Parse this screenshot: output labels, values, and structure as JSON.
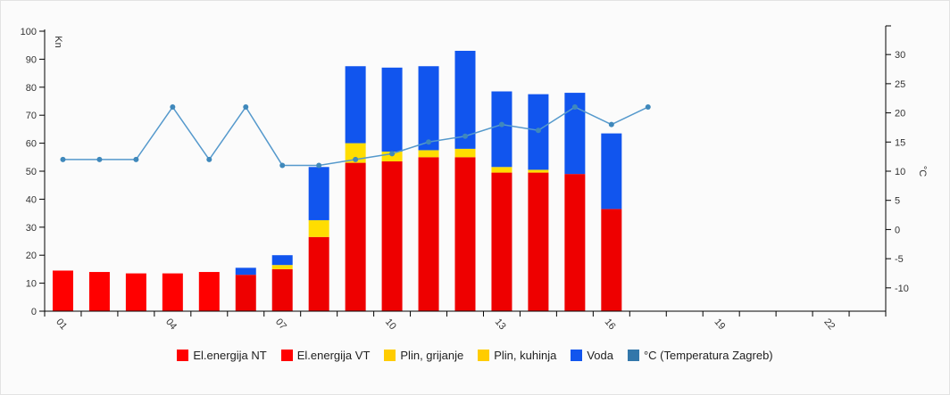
{
  "chart_data": {
    "type": "bar",
    "categories": [
      "01",
      "02",
      "03",
      "04",
      "05",
      "06",
      "07",
      "08",
      "09",
      "10",
      "11",
      "12",
      "13",
      "14",
      "15",
      "16",
      "17",
      "18",
      "19",
      "20",
      "21",
      "22",
      "23"
    ],
    "x_tick_labels": [
      "01",
      "04",
      "07",
      "10",
      "13",
      "16",
      "19",
      "22"
    ],
    "y_left": {
      "label": "Kn",
      "ylim": [
        0,
        100
      ],
      "ticks": [
        0,
        10,
        20,
        30,
        40,
        50,
        60,
        70,
        80,
        90,
        100
      ]
    },
    "y_right": {
      "label": "°C",
      "ylim": [
        -14,
        34
      ],
      "ticks": [
        -10,
        -5,
        0,
        5,
        10,
        15,
        20,
        25,
        30
      ]
    },
    "stacked": true,
    "series": [
      {
        "name": "El.energija NT",
        "color": "#ff0000",
        "values": [
          14.5,
          14,
          13.5,
          13.5,
          14,
          0,
          0,
          0,
          0,
          0,
          0,
          0,
          0,
          0,
          0,
          0,
          null,
          null,
          null,
          null,
          null,
          null,
          null
        ]
      },
      {
        "name": "El.energija VT",
        "color": "#ee0000",
        "values": [
          0,
          0,
          0,
          0,
          0,
          13,
          15,
          26.5,
          53,
          53.5,
          55,
          55,
          49.5,
          49.5,
          49,
          36.5,
          null,
          null,
          null,
          null,
          null,
          null,
          null
        ]
      },
      {
        "name": "Plin, grijanje",
        "color": "#ffdd00",
        "values": [
          0,
          0,
          0,
          0,
          0,
          0,
          1.5,
          6,
          7,
          3.5,
          2.5,
          3,
          2,
          1,
          0,
          0,
          null,
          null,
          null,
          null,
          null,
          null,
          null
        ]
      },
      {
        "name": "Plin, kuhinja",
        "color": "#ffcc00",
        "values": [
          0,
          0,
          0,
          0,
          0,
          0,
          0,
          0,
          0,
          0,
          0,
          0,
          0,
          0,
          0,
          0,
          null,
          null,
          null,
          null,
          null,
          null,
          null
        ]
      },
      {
        "name": "Voda",
        "color": "#1155ee",
        "values": [
          0,
          0,
          0,
          0,
          0,
          2.5,
          3.5,
          19,
          27.5,
          30,
          30,
          35,
          27,
          27,
          29,
          27,
          null,
          null,
          null,
          null,
          null,
          null,
          null
        ]
      },
      {
        "name": "°C (Temperatura Zagreb)",
        "color": "#5599cc",
        "type": "line",
        "axis": "right",
        "values": [
          12,
          12,
          12,
          21,
          12,
          21,
          11,
          11,
          12,
          13,
          15,
          16,
          18,
          17,
          21,
          18,
          21,
          null,
          null,
          null,
          null,
          null,
          null
        ]
      }
    ],
    "legend_swatch_colors": [
      "#ff0000",
      "#ff0000",
      "#ffcc00",
      "#ffcc00",
      "#1155ee",
      "#3377aa"
    ],
    "grid": false,
    "legend_position": "bottom"
  }
}
